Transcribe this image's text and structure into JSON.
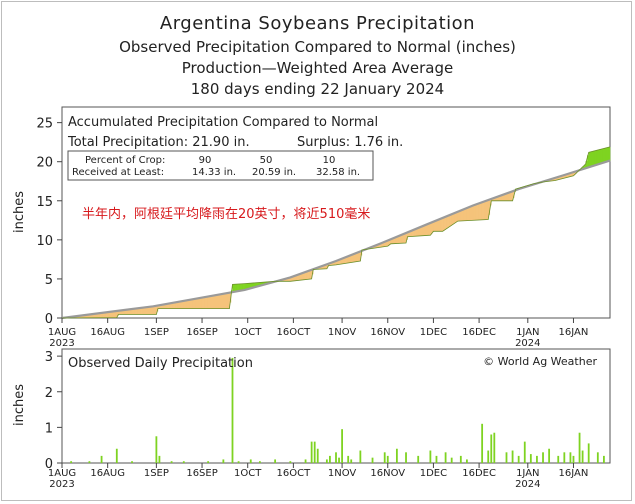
{
  "header": {
    "title": "Argentina Soybeans Precipitation",
    "subtitle1": "Observed Precipitation Compared to Normal (inches)",
    "subtitle2": "Production—Weighted Area Average",
    "subtitle3": "180 days ending 22 January 2024"
  },
  "chart_data": [
    {
      "type": "area",
      "title": "Accumulated Precipitation Compared to Normal",
      "total_label": "Total Precipitation: 21.90 in.",
      "surplus_label": "Surplus: 1.76 in.",
      "table": {
        "row1_label": "Percent of Crop:",
        "row2_label": "Received at Least:",
        "percents": [
          "90",
          "50",
          "10"
        ],
        "amounts": [
          "14.33 in.",
          "20.59 in.",
          "32.58 in."
        ]
      },
      "annotation": "半年内，阿根廷平均降雨在20英寸，将近510毫米",
      "ylabel": "inches",
      "ylim": [
        0,
        27
      ],
      "yticks": [
        "0",
        "5",
        "10",
        "15",
        "20",
        "25"
      ],
      "x_days": 180,
      "xticks": [
        {
          "day": 0,
          "label": "1AUG",
          "year": "2023"
        },
        {
          "day": 15,
          "label": "16AUG"
        },
        {
          "day": 31,
          "label": "1SEP"
        },
        {
          "day": 46,
          "label": "16SEP"
        },
        {
          "day": 61,
          "label": "1OCT"
        },
        {
          "day": 76,
          "label": "16OCT"
        },
        {
          "day": 92,
          "label": "1NOV"
        },
        {
          "day": 107,
          "label": "16NOV"
        },
        {
          "day": 122,
          "label": "1DEC"
        },
        {
          "day": 137,
          "label": "16DEC"
        },
        {
          "day": 153,
          "label": "1JAN",
          "year": "2024"
        },
        {
          "day": 168,
          "label": "16JAN"
        }
      ],
      "normal_series": {
        "name": "Normal",
        "x": [
          0,
          30,
          60,
          75,
          90,
          105,
          120,
          135,
          150,
          165,
          180
        ],
        "y": [
          0,
          1.5,
          3.6,
          5.2,
          7.3,
          9.6,
          12.0,
          14.4,
          16.5,
          18.3,
          20.14
        ]
      },
      "observed_series": {
        "name": "Observed",
        "x": [
          0,
          18,
          18.5,
          31,
          31.5,
          55,
          56,
          60,
          70,
          75,
          82,
          82.5,
          87,
          87.5,
          90,
          98,
          98.5,
          107,
          108,
          113,
          113.5,
          121,
          122,
          125,
          130,
          140,
          141,
          148,
          149,
          155,
          158,
          162,
          168,
          172,
          173,
          180
        ],
        "y": [
          0,
          0.05,
          0.45,
          0.45,
          1.2,
          1.2,
          4.3,
          4.4,
          4.7,
          4.7,
          5.0,
          6.2,
          6.3,
          6.7,
          6.8,
          7.3,
          8.7,
          9.2,
          9.5,
          9.6,
          10.4,
          10.6,
          11.1,
          11.1,
          12.4,
          12.6,
          15.0,
          15.0,
          16.5,
          17.2,
          17.4,
          17.6,
          18.2,
          19.7,
          21.2,
          21.9
        ]
      },
      "colors": {
        "surplus": "#7ed321",
        "deficit": "#f5c37a",
        "normal": "#9a9a9a",
        "observed": "#6b8f2a"
      }
    },
    {
      "type": "bar",
      "title": "Observed Daily Precipitation",
      "credit": "© World Ag Weather",
      "ylabel": "inches",
      "ylim": [
        0,
        3.2
      ],
      "yticks": [
        "0",
        "1",
        "2",
        "3"
      ],
      "color": "#7ed321",
      "days": [
        3,
        9,
        13,
        18,
        23,
        31,
        32,
        36,
        40,
        48,
        53,
        56,
        58,
        62,
        65,
        70,
        75,
        80,
        82,
        83,
        84,
        87,
        88,
        90,
        91,
        92,
        94,
        95,
        98,
        102,
        106,
        107,
        110,
        113,
        117,
        121,
        123,
        126,
        128,
        131,
        133,
        138,
        140,
        141,
        142,
        146,
        148,
        150,
        152,
        154,
        156,
        158,
        160,
        163,
        165,
        167,
        168,
        170,
        171,
        173,
        176,
        178
      ],
      "values": [
        0.05,
        0.05,
        0.2,
        0.4,
        0.05,
        0.75,
        0.2,
        0.05,
        0.05,
        0.05,
        0.1,
        2.95,
        0.05,
        0.1,
        0.05,
        0.1,
        0.05,
        0.1,
        0.6,
        0.6,
        0.4,
        0.1,
        0.2,
        0.3,
        0.15,
        0.95,
        0.2,
        0.1,
        0.35,
        0.15,
        0.3,
        0.2,
        0.4,
        0.3,
        0.2,
        0.35,
        0.2,
        0.3,
        0.15,
        0.2,
        0.1,
        1.1,
        0.35,
        0.8,
        0.85,
        0.3,
        0.35,
        0.2,
        0.6,
        0.25,
        0.2,
        0.3,
        0.4,
        0.2,
        0.3,
        0.3,
        0.2,
        0.85,
        0.35,
        0.55,
        0.3,
        0.2
      ]
    }
  ]
}
